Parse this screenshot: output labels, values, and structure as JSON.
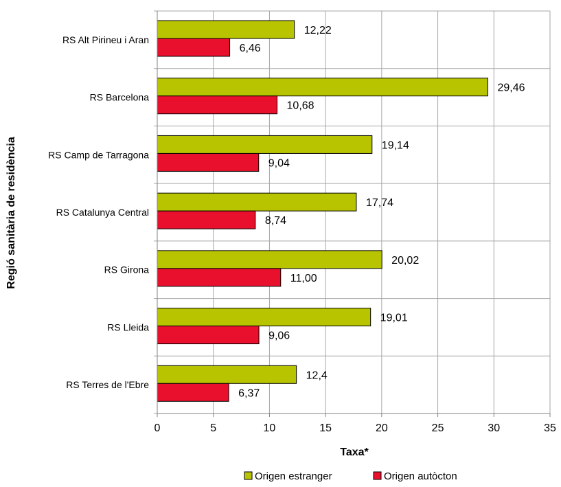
{
  "chart_data": {
    "type": "bar",
    "orientation": "horizontal",
    "categories": [
      "RS Alt Pirineu i Aran",
      "RS Barcelona",
      "RS Camp de Tarragona",
      "RS Catalunya Central",
      "RS Girona",
      "RS Lleida",
      "RS Terres de l'Ebre"
    ],
    "series": [
      {
        "name": "Origen estranger",
        "color": "#B8C400",
        "values": [
          12.22,
          29.46,
          19.14,
          17.74,
          20.02,
          19.01,
          12.4
        ],
        "labels": [
          "12,22",
          "29,46",
          "19,14",
          "17,74",
          "20,02",
          "19,01",
          "12,4"
        ]
      },
      {
        "name": "Origen autòcton",
        "color": "#E8102C",
        "values": [
          6.46,
          10.68,
          9.04,
          8.74,
          11.0,
          9.06,
          6.37
        ],
        "labels": [
          "6,46",
          "10,68",
          "9,04",
          "8,74",
          "11,00",
          "9,06",
          "6,37"
        ]
      }
    ],
    "xlabel": "Taxa*",
    "ylabel": "Regió sanitària de residència",
    "xlim": [
      0,
      35
    ],
    "xticks": [
      0,
      5,
      10,
      15,
      20,
      25,
      30,
      35
    ],
    "grid": true,
    "legend_position": "bottom"
  }
}
